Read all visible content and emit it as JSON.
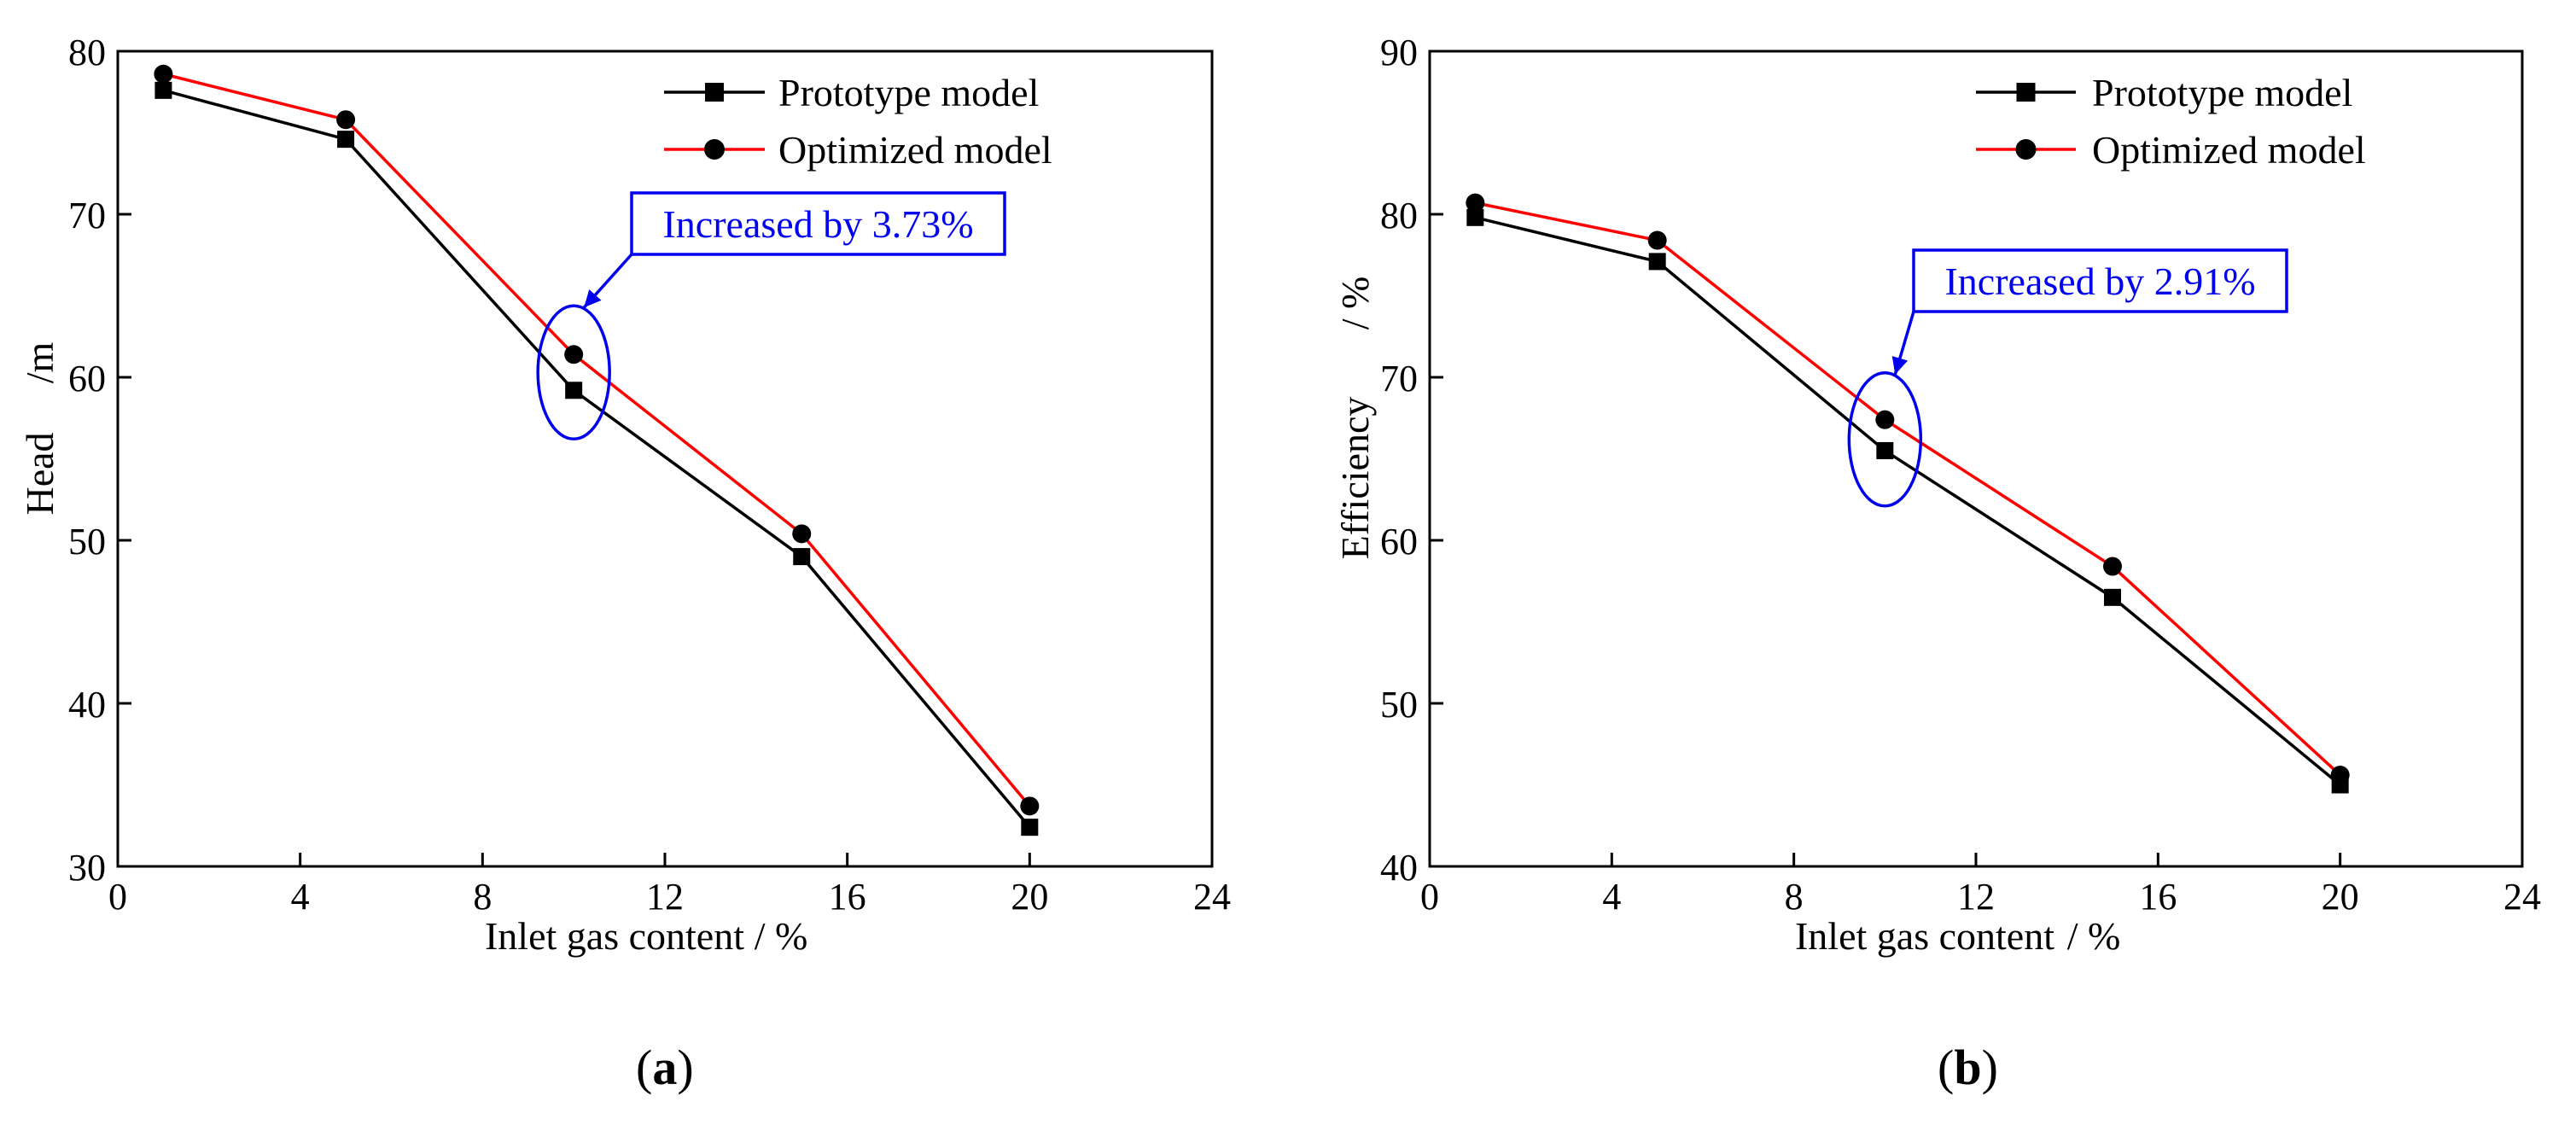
{
  "chart_data": [
    {
      "id": "a",
      "type": "line",
      "panel_label": {
        "open": "(",
        "letter": "a",
        "close": ")"
      },
      "x": [
        1,
        5,
        10,
        15,
        20
      ],
      "xlim": [
        0,
        24
      ],
      "xticks": [
        0,
        4,
        8,
        12,
        16,
        20,
        24
      ],
      "xlabel": "Inlet gas content",
      "xunit": "/ %",
      "ylim": [
        30,
        80
      ],
      "yticks": [
        30,
        40,
        50,
        60,
        70,
        80
      ],
      "ylabel": "Head",
      "yunit": "/m",
      "grid": false,
      "legend_position": "top-right",
      "series": [
        {
          "name": "Prototype model",
          "values": [
            77.6,
            74.6,
            59.2,
            49.0,
            32.4
          ],
          "color": "#000000",
          "marker": "square"
        },
        {
          "name": "Optimized model",
          "values": [
            78.6,
            75.8,
            61.4,
            50.4,
            33.7
          ],
          "color": "#ff0000",
          "line_color": "#ff0000",
          "marker_color": "#000000",
          "marker": "circle"
        }
      ],
      "annotation": {
        "text": "Increased by 3.73%",
        "color": "#0000ee",
        "at_x": 10
      }
    },
    {
      "id": "b",
      "type": "line",
      "panel_label": {
        "open": "(",
        "letter": "b",
        "close": ")"
      },
      "x": [
        1,
        5,
        10,
        15,
        20
      ],
      "xlim": [
        0,
        24
      ],
      "xticks": [
        0,
        4,
        8,
        12,
        16,
        20,
        24
      ],
      "xlabel": "Inlet gas content",
      "xunit": "/ %",
      "ylim": [
        40,
        90
      ],
      "yticks": [
        40,
        50,
        60,
        70,
        80,
        90
      ],
      "ylabel": "Efficiency",
      "yunit": "/ %",
      "grid": false,
      "legend_position": "top-right",
      "series": [
        {
          "name": "Prototype model",
          "values": [
            79.8,
            77.1,
            65.5,
            56.5,
            45.0
          ],
          "color": "#000000",
          "marker": "square"
        },
        {
          "name": "Optimized model",
          "values": [
            80.7,
            78.4,
            67.4,
            58.4,
            45.6
          ],
          "color": "#ff0000",
          "line_color": "#ff0000",
          "marker_color": "#000000",
          "marker": "circle"
        }
      ],
      "annotation": {
        "text": "Increased by 2.91%",
        "color": "#0000ee",
        "at_x": 10
      }
    }
  ]
}
